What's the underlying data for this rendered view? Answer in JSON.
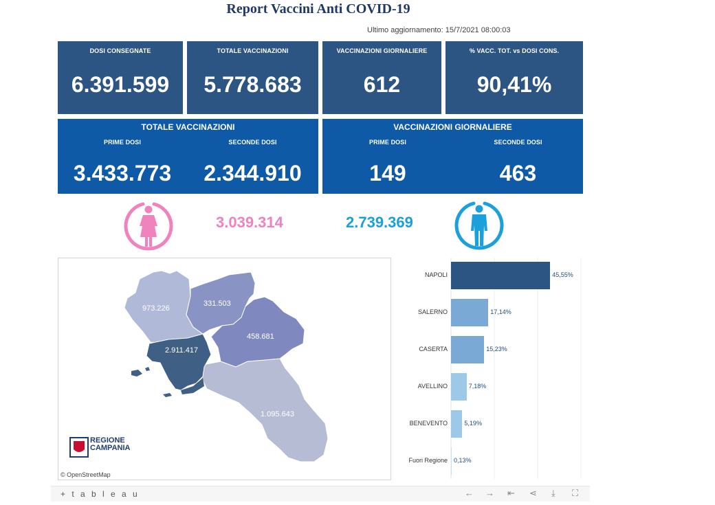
{
  "title": "Report Vaccini Anti COVID-19",
  "updated": "Ultimo aggiornamento: 15/7/2021 08:00:03",
  "kpis": [
    {
      "label": "DOSI CONSEGNATE",
      "value": "6.391.599"
    },
    {
      "label": "TOTALE VACCINAZIONI",
      "value": "5.778.683"
    },
    {
      "label": "VACCINAZIONI GIORNALIERE",
      "value": "612"
    },
    {
      "label": "% VACC. TOT. vs DOSI CONS.",
      "value": "90,41%"
    }
  ],
  "totale": {
    "title": "TOTALE VACCINAZIONI",
    "prime_label": "PRIME DOSI",
    "prime_value": "3.433.773",
    "seconde_label": "SECONDE DOSI",
    "seconde_value": "2.344.910"
  },
  "giornaliere": {
    "title": "VACCINAZIONI GIORNALIERE",
    "prime_label": "PRIME DOSI",
    "prime_value": "149",
    "seconde_label": "SECONDE DOSI",
    "seconde_value": "463"
  },
  "gender": {
    "female_value": "3.039.314",
    "male_value": "2.739.369",
    "female_color": "#f082bd",
    "male_color": "#1aa0db",
    "female_icon": "female-icon",
    "male_icon": "male-icon"
  },
  "map": {
    "labels": {
      "caserta": "973.226",
      "benevento": "331.503",
      "avellino": "458.681",
      "napoli": "2.911.417",
      "salerno": "1.095.643"
    },
    "attribution": "© OpenStreetMap",
    "logo_line1": "REGIONE",
    "logo_line2": "CAMPANIA"
  },
  "chart_data": {
    "type": "bar",
    "orientation": "horizontal",
    "categories": [
      "NAPOLI",
      "SALERNO",
      "CASERTA",
      "AVELLINO",
      "BENEVENTO",
      "Fuori Regione"
    ],
    "values": [
      45.55,
      17.14,
      15.23,
      7.18,
      5.19,
      0.13
    ],
    "labels": [
      "45,55%",
      "17,14%",
      "15,23%",
      "7,18%",
      "5,19%",
      "0,13%"
    ],
    "colors": [
      "#2c5583",
      "#79a9d4",
      "#79a9d4",
      "#9ec8e8",
      "#9ec8e8",
      "#c9e0f2"
    ],
    "xlim": [
      0,
      60
    ]
  },
  "footer": {
    "brand": "+ t a b l e a u"
  }
}
